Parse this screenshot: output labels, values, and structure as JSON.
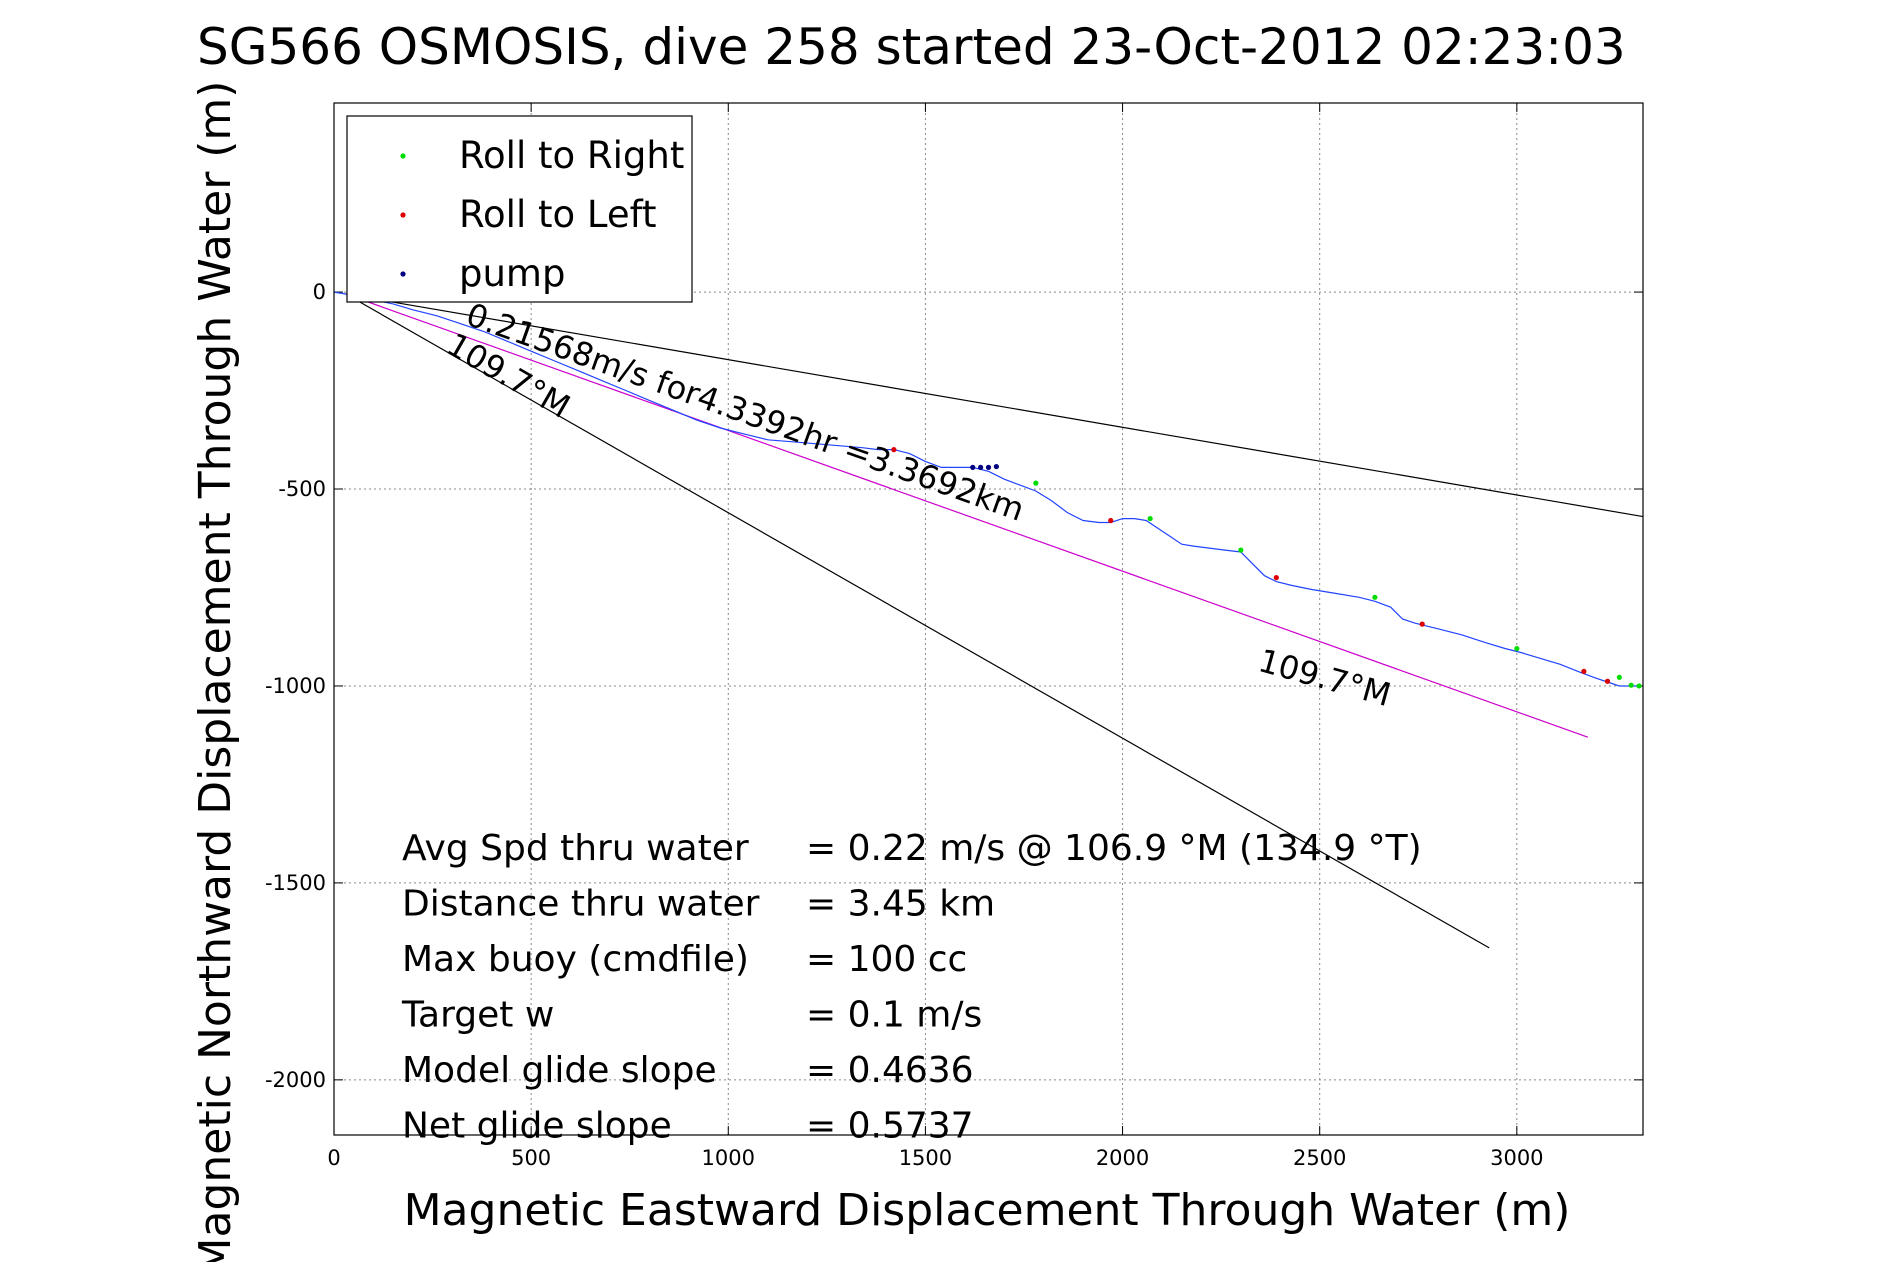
{
  "chart_data": {
    "type": "line",
    "title": "SG566 OSMOSIS, dive 258 started 23-Oct-2012 02:23:03",
    "xlabel": "Magnetic Eastward Displacement Through Water (m)",
    "ylabel": "Magnetic Northward Displacement Through Water (m)",
    "xlim": [
      0,
      3320
    ],
    "ylim": [
      -2140,
      480
    ],
    "xticks": [
      0,
      500,
      1000,
      1500,
      2000,
      2500,
      3000
    ],
    "yticks": [
      0,
      -500,
      -1000,
      -1500,
      -2000
    ],
    "xtick_labels": [
      "0",
      "500",
      "1000",
      "1500",
      "2000",
      "2500",
      "3000"
    ],
    "ytick_labels": [
      "0",
      "-500",
      "-1000",
      "-1500",
      "-2000"
    ],
    "grid": true,
    "legend_position": "top-left",
    "legend": [
      {
        "label": "Roll to Right",
        "color": "#00dd00"
      },
      {
        "label": "Roll to Left",
        "color": "#dd0000"
      },
      {
        "label": "pump",
        "color": "#000080"
      }
    ],
    "track_color": "#2244ff",
    "track": {
      "x": [
        0,
        30,
        60,
        100,
        150,
        200,
        260,
        320,
        380,
        440,
        500,
        560,
        620,
        680,
        740,
        800,
        860,
        920,
        980,
        1040,
        1100,
        1160,
        1220,
        1280,
        1340,
        1380,
        1420,
        1460,
        1500,
        1540,
        1580,
        1620,
        1660,
        1700,
        1740,
        1780,
        1820,
        1860,
        1900,
        1940,
        1970,
        2000,
        2030,
        2060,
        2090,
        2120,
        2150,
        2180,
        2220,
        2260,
        2300,
        2330,
        2360,
        2390,
        2430,
        2480,
        2540,
        2600,
        2640,
        2680,
        2710,
        2740,
        2760,
        2800,
        2860,
        2920,
        2970,
        3010,
        3060,
        3110,
        3160,
        3200,
        3230,
        3260,
        3290,
        3310
      ],
      "y": [
        0,
        -5,
        -12,
        -20,
        -30,
        -45,
        -60,
        -80,
        -100,
        -125,
        -150,
        -175,
        -200,
        -225,
        -250,
        -275,
        -300,
        -325,
        -345,
        -360,
        -375,
        -380,
        -385,
        -390,
        -395,
        -400,
        -400,
        -410,
        -430,
        -445,
        -445,
        -445,
        -455,
        -475,
        -490,
        -505,
        -530,
        -560,
        -580,
        -585,
        -585,
        -575,
        -575,
        -580,
        -600,
        -620,
        -640,
        -645,
        -650,
        -655,
        -660,
        -690,
        -720,
        -735,
        -745,
        -755,
        -765,
        -775,
        -785,
        -800,
        -830,
        -840,
        -845,
        -855,
        -870,
        -890,
        -905,
        -915,
        -930,
        -945,
        -965,
        -980,
        -990,
        -1000,
        -1000,
        -1000
      ]
    },
    "roll_right_points": {
      "x": [
        1780,
        2070,
        2300,
        2640,
        3000,
        3260,
        3290,
        3310
      ],
      "y": [
        -485,
        -575,
        -655,
        -775,
        -905,
        -978,
        -998,
        -1000
      ]
    },
    "roll_left_points": {
      "x": [
        1420,
        1970,
        2390,
        2760,
        3170,
        3230
      ],
      "y": [
        -400,
        -580,
        -725,
        -843,
        -963,
        -988
      ]
    },
    "pump_points": {
      "x": [
        1620,
        1640,
        1660,
        1680
      ],
      "y": [
        -445,
        -445,
        -445,
        -443
      ]
    },
    "reference_lines": [
      {
        "color": "#000000",
        "x": [
          30,
          3320
        ],
        "y": [
          -5,
          -570
        ]
      },
      {
        "color": "#000000",
        "x": [
          30,
          2930
        ],
        "y": [
          -5,
          -1665
        ]
      },
      {
        "color": "#cc00cc",
        "x": [
          30,
          3180
        ],
        "y": [
          -5,
          -1130
        ]
      }
    ],
    "annotations": [
      {
        "text": "0.21568m/s for4.3392hr =3.3692km",
        "x": 330,
        "y": -80,
        "rotation": 19.6
      },
      {
        "text": "109.7°M",
        "x": 280,
        "y": -150,
        "rotation": 30
      },
      {
        "text": "109.7°M",
        "x": 2340,
        "y": -960,
        "rotation": 15.5
      }
    ],
    "summary": [
      {
        "label": "Avg Spd thru water",
        "value": "=  0.22 m/s @ 106.9 °M (134.9 °T)"
      },
      {
        "label": "Distance thru water",
        "value": "=  3.45 km"
      },
      {
        "label": "Max buoy (cmdfile)",
        "value": "= 100 cc"
      },
      {
        "label": "Target w",
        "value": "= 0.1 m/s"
      },
      {
        "label": "Model glide slope",
        "value": "= 0.4636"
      },
      {
        "label": "Net glide slope",
        "value": "= 0.5737"
      }
    ]
  }
}
